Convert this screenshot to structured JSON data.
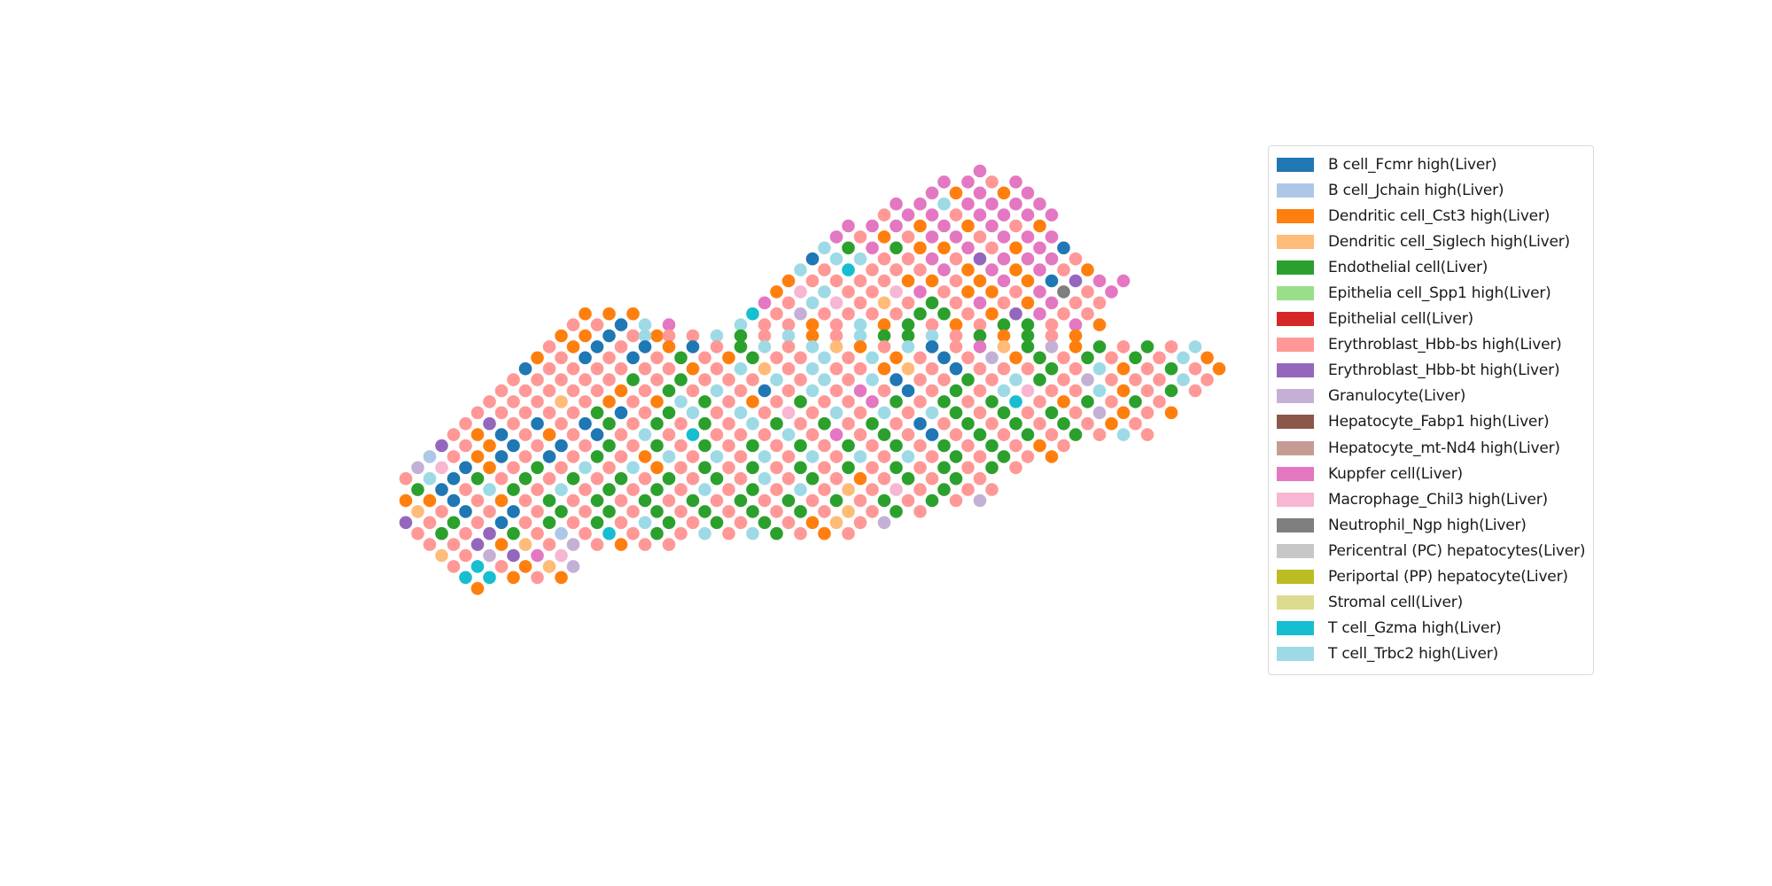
{
  "chart_data": {
    "type": "scatter",
    "title": "",
    "xlabel": "",
    "ylabel": "",
    "axes_visible": false,
    "legend_position": "right",
    "legend": [
      {
        "label": "B cell_Fcmr high(Liver)",
        "color": "#1f77b4",
        "code": "B"
      },
      {
        "label": "B cell_Jchain high(Liver)",
        "color": "#aec7e8",
        "code": "J"
      },
      {
        "label": "Dendritic cell_Cst3 high(Liver)",
        "color": "#ff7f0e",
        "code": "D"
      },
      {
        "label": "Dendritic cell_Siglech high(Liver)",
        "color": "#ffbb78",
        "code": "S"
      },
      {
        "label": "Endothelial cell(Liver)",
        "color": "#2ca02c",
        "code": "E"
      },
      {
        "label": "Epithelia cell_Spp1 high(Liver)",
        "color": "#98df8a",
        "code": "P"
      },
      {
        "label": "Epithelial cell(Liver)",
        "color": "#d62728",
        "code": "R"
      },
      {
        "label": "Erythroblast_Hbb-bs high(Liver)",
        "color": "#ff9896",
        "code": "o"
      },
      {
        "label": "Erythroblast_Hbb-bt high(Liver)",
        "color": "#9467bd",
        "code": "V"
      },
      {
        "label": "Granulocyte(Liver)",
        "color": "#c5b0d5",
        "code": "G"
      },
      {
        "label": "Hepatocyte_Fabp1 high(Liver)",
        "color": "#8c564b",
        "code": "F"
      },
      {
        "label": "Hepatocyte_mt-Nd4 high(Liver)",
        "color": "#c49c94",
        "code": "M"
      },
      {
        "label": "Kuppfer cell(Liver)",
        "color": "#e377c2",
        "code": "K"
      },
      {
        "label": "Macrophage_Chil3 high(Liver)",
        "color": "#f7b6d2",
        "code": "C"
      },
      {
        "label": "Neutrophil_Ngp high(Liver)",
        "color": "#7f7f7f",
        "code": "N"
      },
      {
        "label": "Pericentral (PC) hepatocytes(Liver)",
        "color": "#c7c7c7",
        "code": "Q"
      },
      {
        "label": "Periportal (PP) hepatocyte(Liver)",
        "color": "#bcbd22",
        "code": "W"
      },
      {
        "label": "Stromal cell(Liver)",
        "color": "#dbdb8d",
        "code": "X"
      },
      {
        "label": "T cell_Gzma high(Liver)",
        "color": "#17becf",
        "code": "Z"
      },
      {
        "label": "T cell_Trbc2 high(Liver)",
        "color": "#9edae5",
        "code": "T"
      }
    ],
    "spot_rows": [
      {
        "row": 0,
        "start_col": 61,
        "cells": "K"
      },
      {
        "row": 1,
        "start_col": 58,
        "cells": "KKoK"
      },
      {
        "row": 2,
        "start_col": 57,
        "cells": "KDKDK"
      },
      {
        "row": 3,
        "start_col": 54,
        "cells": "KKTKKKK"
      },
      {
        "row": 4,
        "start_col": 53,
        "cells": "oKKoKKKK"
      },
      {
        "row": 5,
        "start_col": 50,
        "cells": "KKKDKDKoD"
      },
      {
        "row": 6,
        "start_col": 49,
        "cells": "KoDoKKoKKK"
      },
      {
        "row": 7,
        "start_col": 48,
        "cells": "TEKEDDKoDKB"
      },
      {
        "row": 8,
        "start_col": 47,
        "cells": "BTTooKoVKKKo"
      },
      {
        "row": 9,
        "start_col": 46,
        "cells": "ToZoooKDKDKoD"
      },
      {
        "row": 10,
        "start_col": 45,
        "cells": "DooooDDoDKDBVKK"
      },
      {
        "row": 11,
        "start_col": 44,
        "cells": "DCTooCKoDDoKNoK"
      },
      {
        "row": 12,
        "start_col": 43,
        "cells": "KoTCoSoEoKoDKoo"
      },
      {
        "row": 13,
        "start_col": 28,
        "cells": "DDD",
        "extra": [
          {
            "start_col": 42,
            "cells": "ZoGooooEEoDVKoo"
          }
        ]
      },
      {
        "row": 14,
        "start_col": 27,
        "cells": "ooBTK",
        "extra": [
          {
            "start_col": 41,
            "cells": "TooDoTDEoDoEEoKD"
          }
        ]
      },
      {
        "row": 15,
        "start_col": 26,
        "cells": "DDBoD",
        "extra": [
          {
            "start_col": 33,
            "cells": "TooTEoTDoTEEToEDEoD"
          }
        ]
      },
      {
        "row": 16,
        "start_col": 25,
        "cells": "oDBoBDBoEToTSDoTBoKSEGDEoEoT"
      },
      {
        "row": 17,
        "start_col": 24,
        "cells": "DoBoBoEoDEooToTDoBoGDEoEoEoTD"
      },
      {
        "row": 18,
        "start_col": 23,
        "cells": "BooooooDoTSoTooDSoBoooEoTDoEoD"
      },
      {
        "row": 19,
        "start_col": 22,
        "cells": "oooooEoEoooToToTBooEoTEoGoooTo"
      },
      {
        "row": 20,
        "start_col": 21,
        "cells": "oooooDoEoToBoToKoBoEoTCooTDoEo"
      },
      {
        "row": 21,
        "start_col": 20,
        "cells": "oooSoDoDTEoDoEooKEoEoEZoDEoEo"
      },
      {
        "row": 22,
        "start_col": 19,
        "cells": "oooooEBoEToToCoToToTEoEoEoGDoD"
      },
      {
        "row": 23,
        "start_col": 18,
        "cells": "oVoBoBEoEoEoTEoEoEoBoEoEoEoDo"
      },
      {
        "row": 24,
        "start_col": 17,
        "cells": "oDBoDoBoToZoooToKoEoBoEoEoEoTo"
      },
      {
        "row": 25,
        "start_col": 16,
        "cells": "VoDBoBoEoEoEoEoEoEoEoEoEoDo"
      },
      {
        "row": 26,
        "start_col": 15,
        "cells": "JoDBoBoEoDToToToToToToEoEoD"
      },
      {
        "row": 27,
        "start_col": 14,
        "cells": "GCBDoEoToTDoEoEoEoEoEoEoEo"
      },
      {
        "row": 28,
        "start_col": 13,
        "cells": "oTBEoEoEoEoEoEoToEoDoEoEo"
      },
      {
        "row": 29,
        "start_col": 14,
        "cells": "EBoTEoToEoEoToEoToSoCoEoo"
      },
      {
        "row": 30,
        "start_col": 13,
        "cells": "DDBoDoEoEoEoEoEoEoEoEoEoG"
      },
      {
        "row": 31,
        "start_col": 14,
        "cells": "SoBoBoEoEoEoEoEoEoSoEo"
      },
      {
        "row": 32,
        "start_col": 13,
        "cells": "VoEoBoEoEoTEoEoEoDSoG"
      },
      {
        "row": 33,
        "start_col": 14,
        "cells": "oEoVEoJoZoEoToTEoDo"
      },
      {
        "row": 34,
        "start_col": 15,
        "cells": "ooVDSoGoDoo"
      },
      {
        "row": 35,
        "start_col": 16,
        "cells": "SoGVKC"
      },
      {
        "row": 36,
        "start_col": 17,
        "cells": "oZoDSG"
      },
      {
        "row": 37,
        "start_col": 18,
        "cells": "ZZDoD"
      },
      {
        "row": 38,
        "start_col": 19,
        "cells": "D"
      }
    ]
  }
}
